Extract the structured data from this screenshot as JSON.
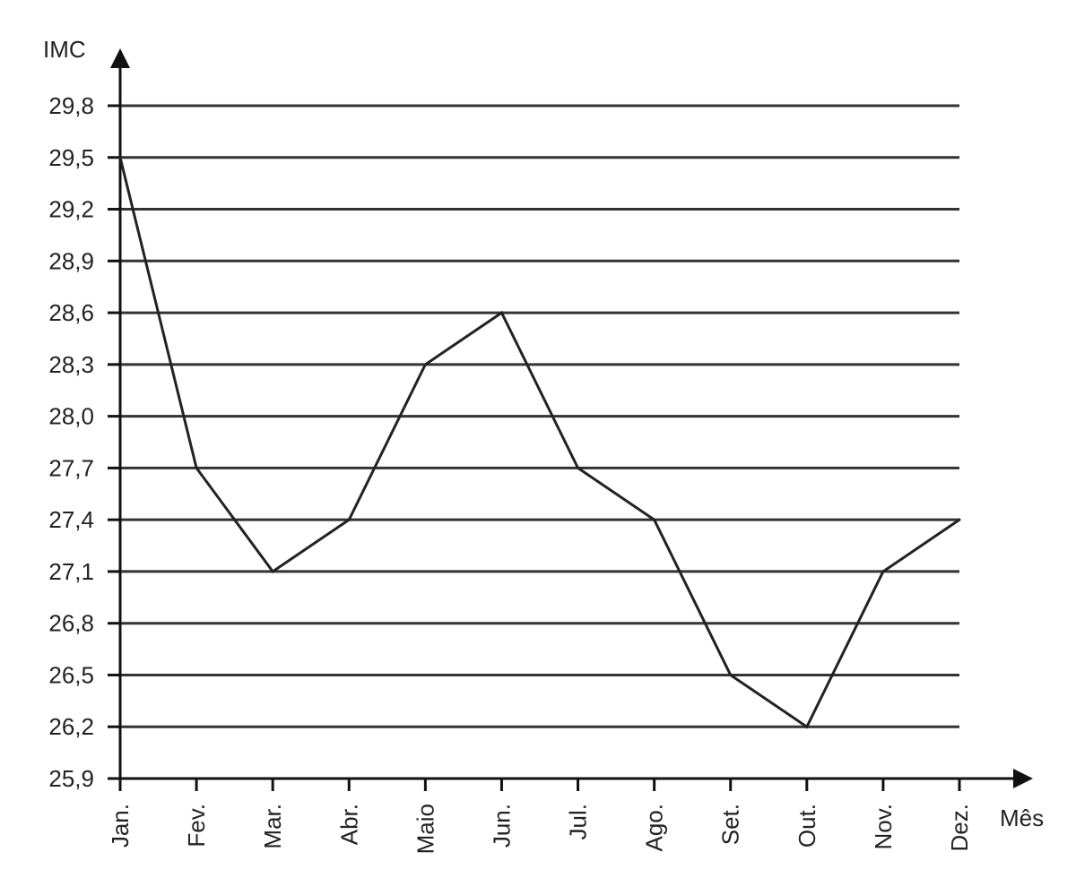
{
  "chart_data": {
    "type": "line",
    "title": "",
    "xlabel": "Mês",
    "ylabel": "IMC",
    "categories": [
      "Jan.",
      "Fev.",
      "Mar.",
      "Abr.",
      "Maio",
      "Jun.",
      "Jul.",
      "Ago.",
      "Set.",
      "Out.",
      "Nov.",
      "Dez."
    ],
    "y_ticks": [
      "25,9",
      "26,2",
      "26,5",
      "26,8",
      "27,1",
      "27,4",
      "27,7",
      "28,0",
      "28,3",
      "28,6",
      "28,9",
      "29,2",
      "29,5",
      "29,8"
    ],
    "ylim": [
      25.9,
      29.8
    ],
    "grid": true,
    "series": [
      {
        "values": [
          29.5,
          27.7,
          27.1,
          27.4,
          28.3,
          28.6,
          27.7,
          27.4,
          26.5,
          26.2,
          27.1,
          27.4
        ]
      }
    ],
    "colors": {
      "line": "#222222",
      "grid": "#333333",
      "axis": "#111111"
    }
  }
}
